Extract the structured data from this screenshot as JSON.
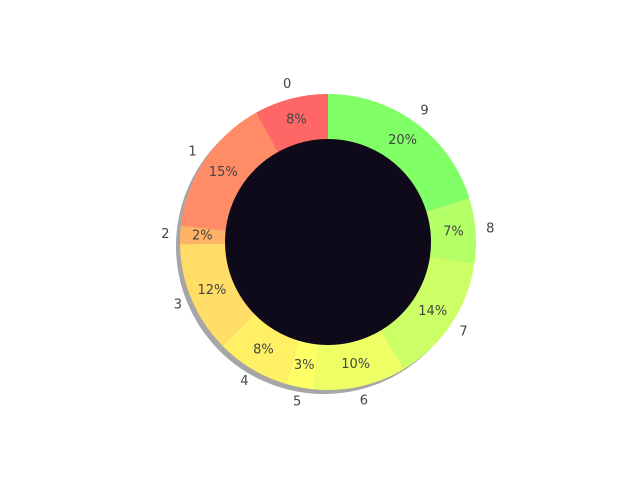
{
  "chart_data": {
    "type": "pie",
    "style": "donut",
    "start_angle_deg": 90,
    "direction": "counterclockwise",
    "shadow": true,
    "center_color": "#0f0a19",
    "slices": [
      {
        "label": "0",
        "value": 8,
        "pct_label": "8%",
        "color": "#ff6666"
      },
      {
        "label": "1",
        "value": 15,
        "pct_label": "15%",
        "color": "#ff8c66"
      },
      {
        "label": "2",
        "value": 2,
        "pct_label": "2%",
        "color": "#ffb366"
      },
      {
        "label": "3",
        "value": 12,
        "pct_label": "12%",
        "color": "#ffdd66"
      },
      {
        "label": "4",
        "value": 8,
        "pct_label": "8%",
        "color": "#fff066"
      },
      {
        "label": "5",
        "value": 3,
        "pct_label": "3%",
        "color": "#ffff66"
      },
      {
        "label": "6",
        "value": 10,
        "pct_label": "10%",
        "color": "#eeff66"
      },
      {
        "label": "7",
        "value": 14,
        "pct_label": "14%",
        "color": "#ccff66"
      },
      {
        "label": "8",
        "value": 7,
        "pct_label": "7%",
        "color": "#b3ff66"
      },
      {
        "label": "9",
        "value": 20,
        "pct_label": "20%",
        "color": "#80ff66"
      }
    ]
  }
}
